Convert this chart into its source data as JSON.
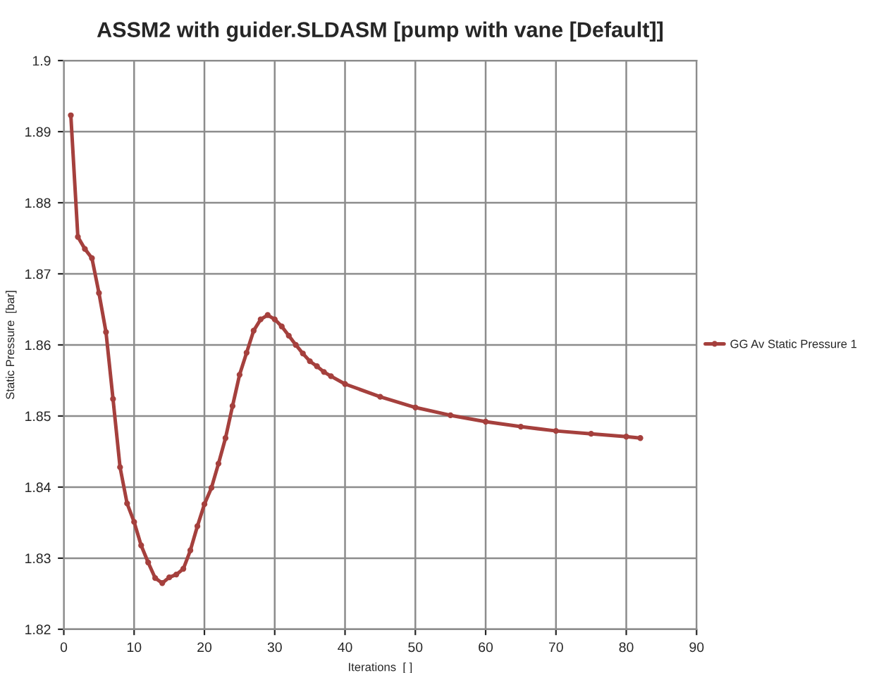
{
  "chart_data": {
    "type": "line",
    "title": "ASSM2 with guider.SLDASM [pump with vane [Default]]",
    "xlabel": "Iterations  [ ]",
    "ylabel": "Static Pressure  [bar]",
    "series": [
      {
        "name": "GG Av Static Pressure 1",
        "color": "#a5403d",
        "x": [
          1,
          2,
          3,
          4,
          5,
          6,
          7,
          8,
          9,
          10,
          11,
          12,
          13,
          14,
          15,
          16,
          17,
          18,
          19,
          20,
          21,
          22,
          23,
          24,
          25,
          26,
          27,
          28,
          29,
          30,
          31,
          32,
          33,
          34,
          35,
          36,
          37,
          38,
          40,
          45,
          50,
          55,
          60,
          65,
          70,
          75,
          80,
          82
        ],
        "values": [
          1.8923,
          1.8752,
          1.8735,
          1.8722,
          1.8673,
          1.8618,
          1.8524,
          1.8428,
          1.8377,
          1.8351,
          1.8318,
          1.8294,
          1.8272,
          1.8265,
          1.8273,
          1.8277,
          1.8285,
          1.8311,
          1.8345,
          1.8376,
          1.8399,
          1.8433,
          1.8469,
          1.8514,
          1.8558,
          1.8589,
          1.862,
          1.8636,
          1.8642,
          1.8636,
          1.8626,
          1.8613,
          1.86,
          1.8588,
          1.8577,
          1.857,
          1.8562,
          1.8556,
          1.8545,
          1.8527,
          1.8512,
          1.8501,
          1.8492,
          1.8485,
          1.8479,
          1.8475,
          1.8471,
          1.8469
        ]
      }
    ],
    "xlim": [
      0,
      90
    ],
    "xticks": [
      0,
      10,
      20,
      30,
      40,
      50,
      60,
      70,
      80,
      90
    ],
    "ylim": [
      1.82,
      1.9
    ],
    "yticks": [
      {
        "value": 1.82,
        "label": "1.82"
      },
      {
        "value": 1.83,
        "label": "1.83"
      },
      {
        "value": 1.84,
        "label": "1.84"
      },
      {
        "value": 1.85,
        "label": "1.85"
      },
      {
        "value": 1.86,
        "label": "1.86"
      },
      {
        "value": 1.87,
        "label": "1.87"
      },
      {
        "value": 1.88,
        "label": "1.88"
      },
      {
        "value": 1.89,
        "label": "1.89"
      },
      {
        "value": 1.9,
        "label": "1.9"
      }
    ],
    "grid": true,
    "legend": "right",
    "marker": "circle",
    "line_style": "solid"
  }
}
